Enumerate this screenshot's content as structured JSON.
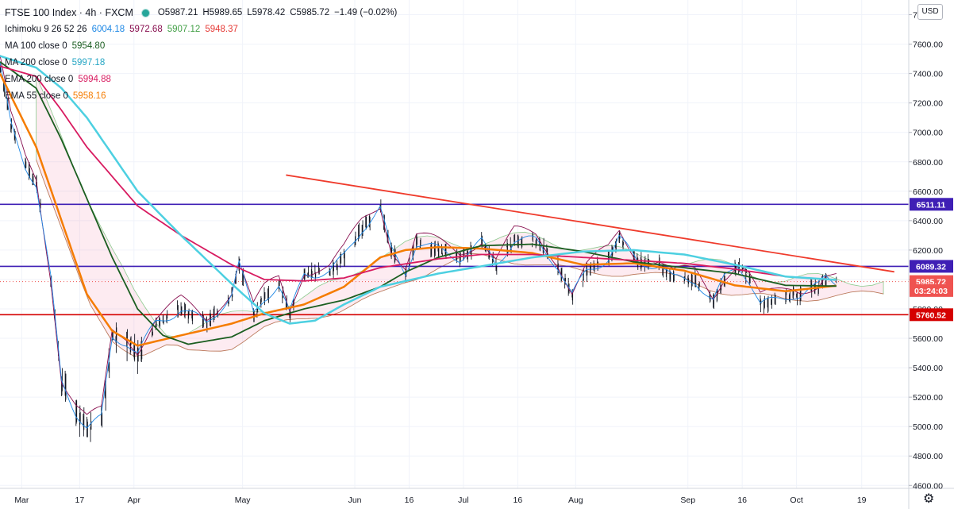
{
  "legend": {
    "symbol": "FTSE 100 Index · 4h · FXCM",
    "ohlc": {
      "o": "O5987.21",
      "h": "H5989.65",
      "l": "L5978.42",
      "c": "C5985.72",
      "chg": "−1.49 (−0.02%)"
    },
    "ichimoku": {
      "label": "Ichimoku 9 26 52 26",
      "v1": "6004.18",
      "v2": "5972.68",
      "v3": "5907.12",
      "v4": "5948.37"
    },
    "ma100": {
      "label": "MA 100 close 0",
      "value": "5954.80"
    },
    "ma200": {
      "label": "MA 200 close 0",
      "value": "5997.18"
    },
    "ema200": {
      "label": "EMA 200 close 0",
      "value": "5994.88"
    },
    "ema55": {
      "label": "EMA 55 close 0",
      "value": "5958.16"
    }
  },
  "currency": "USD",
  "icons": [
    "gear-icon",
    "live-dot-icon"
  ],
  "colors": {
    "ma100": "#1b5e20",
    "ma200": "#4dd0e1",
    "ema200": "#d81b60",
    "ema55": "#f57c00",
    "ichi_conv": "#1e88e5",
    "ichi_base": "#880e4f",
    "resistance": "#3f1fb5",
    "support": "#d50000",
    "trend": "#ef3b2c"
  },
  "chart_data": {
    "type": "line",
    "title": "FTSE 100 Index · 4h · FXCM",
    "x_ticks": [
      "Mar",
      "17",
      "Apr",
      "May",
      "Jun",
      "16",
      "Jul",
      "16",
      "Aug",
      "Sep",
      "16",
      "Oct",
      "19"
    ],
    "y_ticks": [
      "7800.00",
      "7600.00",
      "7400.00",
      "7200.00",
      "7000.00",
      "6800.00",
      "6600.00",
      "6400.00",
      "6200.00",
      "6000.00",
      "5800.00",
      "5600.00",
      "5400.00",
      "5200.00",
      "5000.00",
      "4800.00",
      "4600.00"
    ],
    "ylim": [
      4580,
      7900
    ],
    "price_labels": [
      {
        "value": 6511.11,
        "label": "6511.11",
        "color": "#3f1fb5"
      },
      {
        "value": 6089.32,
        "label": "6089.32",
        "color": "#3f1fb5"
      },
      {
        "value": 5985.72,
        "label": "5985.72",
        "color": "#ef5350"
      },
      {
        "value": 5925,
        "label": "03:24:03",
        "color": "#ef5350"
      },
      {
        "value": 5760.52,
        "label": "5760.52",
        "color": "#d50000"
      }
    ],
    "horizontal_levels": [
      {
        "name": "resistance-6511",
        "value": 6511.11,
        "color": "#3f1fb5"
      },
      {
        "name": "resistance-6089",
        "value": 6089.32,
        "color": "#3f1fb5"
      },
      {
        "name": "support-5760",
        "value": 5760.52,
        "color": "#d50000"
      }
    ],
    "trendline": {
      "from": {
        "date": "2020-05-13",
        "price": 6710
      },
      "to": {
        "date": "2020-10-28",
        "price": 6052
      }
    },
    "last_price": 5985.72,
    "price_path": [
      [
        "2020-02-24",
        7450
      ],
      [
        "2020-02-27",
        7050
      ],
      [
        "2020-03-02",
        6780
      ],
      [
        "2020-03-05",
        6650
      ],
      [
        "2020-03-09",
        6000
      ],
      [
        "2020-03-12",
        5300
      ],
      [
        "2020-03-16",
        5100
      ],
      [
        "2020-03-19",
        5000
      ],
      [
        "2020-03-23",
        5050
      ],
      [
        "2020-03-26",
        5600
      ],
      [
        "2020-03-30",
        5580
      ],
      [
        "2020-04-02",
        5500
      ],
      [
        "2020-04-07",
        5700
      ],
      [
        "2020-04-14",
        5800
      ],
      [
        "2020-04-21",
        5700
      ],
      [
        "2020-04-28",
        5900
      ],
      [
        "2020-04-30",
        6100
      ],
      [
        "2020-05-04",
        5770
      ],
      [
        "2020-05-07",
        5880
      ],
      [
        "2020-05-11",
        5960
      ],
      [
        "2020-05-14",
        5760
      ],
      [
        "2020-05-18",
        6040
      ],
      [
        "2020-05-25",
        6050
      ],
      [
        "2020-05-29",
        6150
      ],
      [
        "2020-06-03",
        6350
      ],
      [
        "2020-06-08",
        6480
      ],
      [
        "2020-06-11",
        6200
      ],
      [
        "2020-06-15",
        6050
      ],
      [
        "2020-06-18",
        6250
      ],
      [
        "2020-06-24",
        6200
      ],
      [
        "2020-06-30",
        6150
      ],
      [
        "2020-07-06",
        6250
      ],
      [
        "2020-07-10",
        6100
      ],
      [
        "2020-07-15",
        6270
      ],
      [
        "2020-07-21",
        6260
      ],
      [
        "2020-07-27",
        6100
      ],
      [
        "2020-07-31",
        5890
      ],
      [
        "2020-08-04",
        6050
      ],
      [
        "2020-08-10",
        6150
      ],
      [
        "2020-08-13",
        6280
      ],
      [
        "2020-08-18",
        6120
      ],
      [
        "2020-08-24",
        6100
      ],
      [
        "2020-08-28",
        6000
      ],
      [
        "2020-09-03",
        6000
      ],
      [
        "2020-09-08",
        5850
      ],
      [
        "2020-09-11",
        6000
      ],
      [
        "2020-09-15",
        6100
      ],
      [
        "2020-09-18",
        6000
      ],
      [
        "2020-09-21",
        5830
      ],
      [
        "2020-09-25",
        5850
      ],
      [
        "2020-09-30",
        5900
      ],
      [
        "2020-10-02",
        5900
      ],
      [
        "2020-10-07",
        5950
      ],
      [
        "2020-10-09",
        6010
      ],
      [
        "2020-10-12",
        5985
      ]
    ],
    "series": [
      {
        "name": "EMA 55 close 0",
        "color": "#f57c00",
        "width": 2.5,
        "points": [
          [
            "2020-02-24",
            7400
          ],
          [
            "2020-03-05",
            6900
          ],
          [
            "2020-03-12",
            6400
          ],
          [
            "2020-03-19",
            5900
          ],
          [
            "2020-03-26",
            5650
          ],
          [
            "2020-04-02",
            5550
          ],
          [
            "2020-04-14",
            5620
          ],
          [
            "2020-04-28",
            5700
          ],
          [
            "2020-05-07",
            5770
          ],
          [
            "2020-05-18",
            5830
          ],
          [
            "2020-05-29",
            5950
          ],
          [
            "2020-06-08",
            6150
          ],
          [
            "2020-06-15",
            6200
          ],
          [
            "2020-06-24",
            6220
          ],
          [
            "2020-07-06",
            6210
          ],
          [
            "2020-07-20",
            6180
          ],
          [
            "2020-08-03",
            6100
          ],
          [
            "2020-08-17",
            6110
          ],
          [
            "2020-08-31",
            6060
          ],
          [
            "2020-09-14",
            5960
          ],
          [
            "2020-09-28",
            5920
          ],
          [
            "2020-10-12",
            5958
          ]
        ]
      },
      {
        "name": "MA 100 close 0",
        "color": "#1b5e20",
        "width": 1.8,
        "points": [
          [
            "2020-02-24",
            7480
          ],
          [
            "2020-03-05",
            7300
          ],
          [
            "2020-03-12",
            6950
          ],
          [
            "2020-03-19",
            6550
          ],
          [
            "2020-03-26",
            6150
          ],
          [
            "2020-04-02",
            5800
          ],
          [
            "2020-04-09",
            5620
          ],
          [
            "2020-04-16",
            5560
          ],
          [
            "2020-04-28",
            5610
          ],
          [
            "2020-05-07",
            5720
          ],
          [
            "2020-05-18",
            5800
          ],
          [
            "2020-05-29",
            5860
          ],
          [
            "2020-06-08",
            5950
          ],
          [
            "2020-06-15",
            6050
          ],
          [
            "2020-06-24",
            6150
          ],
          [
            "2020-07-06",
            6230
          ],
          [
            "2020-07-20",
            6240
          ],
          [
            "2020-08-03",
            6190
          ],
          [
            "2020-08-17",
            6120
          ],
          [
            "2020-08-31",
            6080
          ],
          [
            "2020-09-14",
            6040
          ],
          [
            "2020-09-28",
            5960
          ],
          [
            "2020-10-12",
            5955
          ]
        ]
      },
      {
        "name": "EMA 200 close 0",
        "color": "#d81b60",
        "width": 1.8,
        "points": [
          [
            "2020-02-24",
            7450
          ],
          [
            "2020-03-05",
            7380
          ],
          [
            "2020-03-12",
            7150
          ],
          [
            "2020-03-19",
            6900
          ],
          [
            "2020-03-26",
            6700
          ],
          [
            "2020-04-02",
            6500
          ],
          [
            "2020-04-14",
            6300
          ],
          [
            "2020-04-28",
            6100
          ],
          [
            "2020-05-07",
            6000
          ],
          [
            "2020-05-18",
            5990
          ],
          [
            "2020-05-29",
            6010
          ],
          [
            "2020-06-08",
            6080
          ],
          [
            "2020-06-24",
            6140
          ],
          [
            "2020-07-06",
            6170
          ],
          [
            "2020-07-20",
            6170
          ],
          [
            "2020-08-03",
            6150
          ],
          [
            "2020-08-17",
            6130
          ],
          [
            "2020-08-31",
            6110
          ],
          [
            "2020-09-14",
            6070
          ],
          [
            "2020-09-28",
            6020
          ],
          [
            "2020-10-12",
            5995
          ]
        ]
      },
      {
        "name": "MA 200 close 0",
        "color": "#4dd0e1",
        "width": 2.5,
        "points": [
          [
            "2020-02-24",
            7520
          ],
          [
            "2020-03-05",
            7440
          ],
          [
            "2020-03-12",
            7300
          ],
          [
            "2020-03-19",
            7100
          ],
          [
            "2020-03-26",
            6850
          ],
          [
            "2020-04-02",
            6600
          ],
          [
            "2020-04-14",
            6300
          ],
          [
            "2020-04-28",
            5970
          ],
          [
            "2020-05-07",
            5770
          ],
          [
            "2020-05-14",
            5700
          ],
          [
            "2020-05-21",
            5720
          ],
          [
            "2020-05-29",
            5830
          ],
          [
            "2020-06-08",
            5950
          ],
          [
            "2020-06-24",
            6040
          ],
          [
            "2020-07-06",
            6090
          ],
          [
            "2020-07-20",
            6150
          ],
          [
            "2020-08-03",
            6190
          ],
          [
            "2020-08-17",
            6200
          ],
          [
            "2020-08-31",
            6170
          ],
          [
            "2020-09-14",
            6100
          ],
          [
            "2020-09-28",
            6020
          ],
          [
            "2020-10-12",
            5997
          ]
        ]
      }
    ]
  }
}
